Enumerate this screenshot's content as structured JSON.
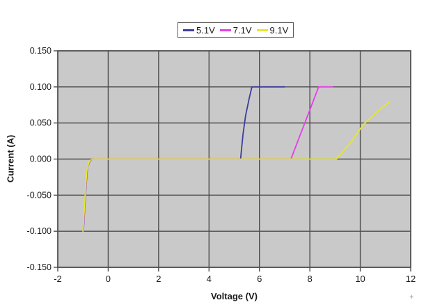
{
  "figure": {
    "background": "#ffffff",
    "cursor_artifact_glyph": "+"
  },
  "chart_data": {
    "type": "line",
    "title": "",
    "xlabel": "Voltage (V)",
    "ylabel": "Current (A)",
    "xlim": [
      -2,
      12
    ],
    "ylim": [
      -0.15,
      0.15
    ],
    "grid": true,
    "plot_background": "#c9c9c9",
    "gridline_color": "#4d4d4d",
    "axis_text_color": "#1a1a1a",
    "legend_position": "top-center",
    "x_ticks": [
      {
        "value": -2,
        "label": "-2"
      },
      {
        "value": 0,
        "label": "0"
      },
      {
        "value": 2,
        "label": "2"
      },
      {
        "value": 4,
        "label": "4"
      },
      {
        "value": 6,
        "label": "6"
      },
      {
        "value": 8,
        "label": "8"
      },
      {
        "value": 10,
        "label": "10"
      },
      {
        "value": 12,
        "label": "12"
      }
    ],
    "y_ticks": [
      {
        "value": 0.15,
        "label": "0.150"
      },
      {
        "value": 0.1,
        "label": "0.100"
      },
      {
        "value": 0.05,
        "label": "0.050"
      },
      {
        "value": 0.0,
        "label": "0.000"
      },
      {
        "value": -0.05,
        "label": "-0.050"
      },
      {
        "value": -0.1,
        "label": "-0.100"
      },
      {
        "value": -0.15,
        "label": "-0.150"
      }
    ],
    "series": [
      {
        "name": "5.1V",
        "color": "#3c3c9e",
        "points": [
          [
            -0.98,
            -0.098
          ],
          [
            -0.93,
            -0.068
          ],
          [
            -0.88,
            -0.038
          ],
          [
            -0.82,
            -0.012
          ],
          [
            -0.72,
            -0.002
          ],
          [
            -0.6,
            0
          ],
          [
            5.25,
            0
          ],
          [
            5.35,
            0.035
          ],
          [
            5.45,
            0.06
          ],
          [
            5.6,
            0.085
          ],
          [
            5.7,
            0.1
          ],
          [
            7.0,
            0.1
          ]
        ]
      },
      {
        "name": "7.1V",
        "color": "#e540e5",
        "points": [
          [
            -0.99,
            -0.099
          ],
          [
            -0.94,
            -0.07
          ],
          [
            -0.89,
            -0.04
          ],
          [
            -0.83,
            -0.013
          ],
          [
            -0.73,
            -0.002
          ],
          [
            -0.61,
            0
          ],
          [
            7.25,
            0
          ],
          [
            7.6,
            0.032
          ],
          [
            8.0,
            0.068
          ],
          [
            8.35,
            0.1
          ],
          [
            8.9,
            0.1
          ]
        ]
      },
      {
        "name": "9.1V",
        "color": "#e6e62e",
        "points": [
          [
            -1.0,
            -0.1
          ],
          [
            -0.95,
            -0.072
          ],
          [
            -0.9,
            -0.042
          ],
          [
            -0.84,
            -0.014
          ],
          [
            -0.74,
            -0.002
          ],
          [
            -0.62,
            0
          ],
          [
            9.05,
            0
          ],
          [
            9.6,
            0.022
          ],
          [
            10.1,
            0.047
          ],
          [
            10.65,
            0.065
          ],
          [
            11.15,
            0.079
          ]
        ]
      }
    ]
  }
}
